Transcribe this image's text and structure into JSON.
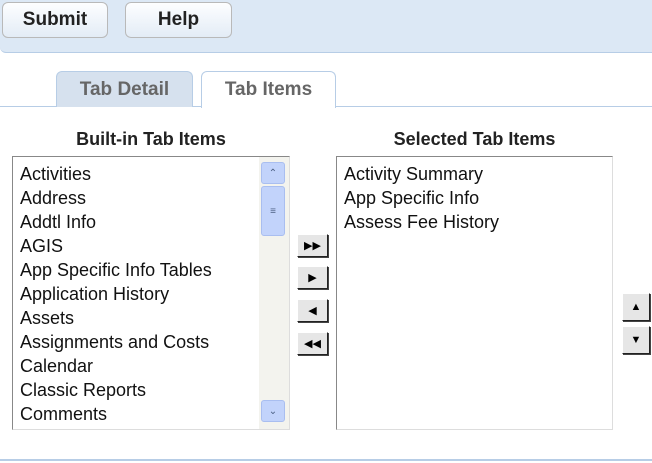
{
  "toolbar": {
    "submit": "Submit",
    "help": "Help"
  },
  "tabs": [
    {
      "label": "Tab Detail",
      "active": false
    },
    {
      "label": "Tab Items",
      "active": true
    }
  ],
  "builtin": {
    "heading": "Built-in Tab Items",
    "items": [
      "Activities",
      "Address",
      "Addtl Info",
      "AGIS",
      "App Specific Info Tables",
      "Application History",
      "Assets",
      "Assignments and Costs",
      "Calendar",
      "Classic Reports",
      "Comments"
    ]
  },
  "selected": {
    "heading": "Selected Tab Items",
    "items": [
      "Activity Summary",
      "App Specific Info",
      "Assess Fee History"
    ]
  },
  "controls": {
    "add_all": "▶▶",
    "add": "▶",
    "remove": "◀",
    "remove_all": "◀◀",
    "move_up": "▲",
    "move_down": "▼"
  }
}
